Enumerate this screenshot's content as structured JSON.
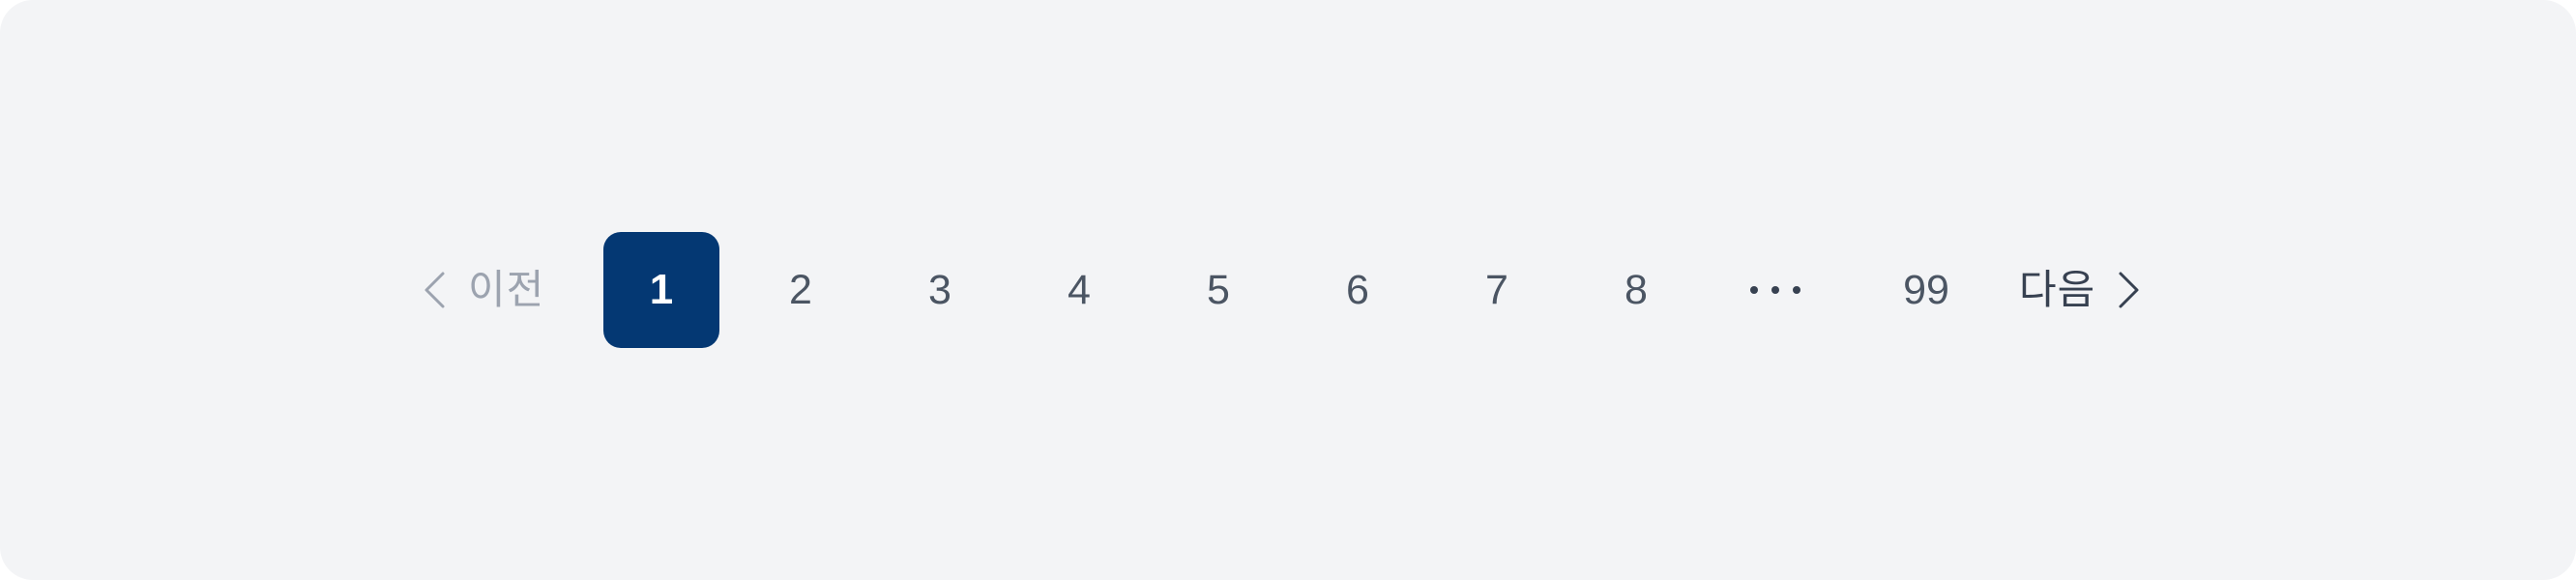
{
  "pagination": {
    "prev": {
      "label": "이전",
      "icon": "chevron-left-icon",
      "disabled": true
    },
    "pages": [
      "1",
      "2",
      "3",
      "4",
      "5",
      "6",
      "7",
      "8"
    ],
    "current_page": "1",
    "ellipsis": "…",
    "last_page": "99",
    "next": {
      "label": "다음",
      "icon": "chevron-right-icon"
    }
  },
  "colors": {
    "background": "#f3f4f6",
    "active_bg": "#043873",
    "active_text": "#ffffff",
    "page_text": "#4b5563",
    "disabled_text": "#9ca3af"
  }
}
